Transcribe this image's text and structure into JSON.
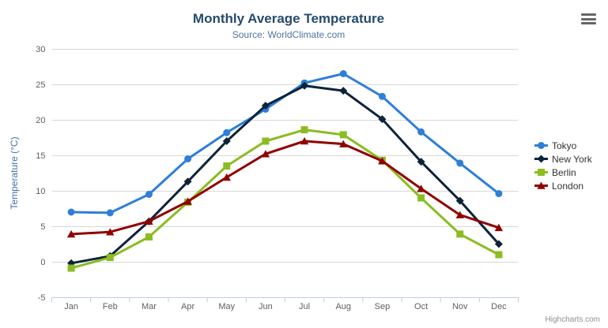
{
  "header": {
    "title": "Monthly Average Temperature",
    "subtitle": "Source: WorldClimate.com"
  },
  "credits_label": "Highcharts.com",
  "icons": {
    "context_menu": "hamburger-menu-icon"
  },
  "colors": {
    "title": "#274b6d",
    "subtitle": "#4d759e",
    "axis_label": "#606060",
    "axis_title": "#4572a7",
    "gridline": "#d8d8d8",
    "axis_line": "#c0d0e0",
    "legend_text": "#333333",
    "credits": "#909090"
  },
  "chart_data": {
    "type": "line",
    "title": "Monthly Average Temperature",
    "subtitle": "Source: WorldClimate.com",
    "categories": [
      "Jan",
      "Feb",
      "Mar",
      "Apr",
      "May",
      "Jun",
      "Jul",
      "Aug",
      "Sep",
      "Oct",
      "Nov",
      "Dec"
    ],
    "series": [
      {
        "name": "Tokyo",
        "color": "#2f7ed8",
        "marker": "circle",
        "values": [
          7.0,
          6.9,
          9.5,
          14.5,
          18.2,
          21.5,
          25.2,
          26.5,
          23.3,
          18.3,
          13.9,
          9.6
        ]
      },
      {
        "name": "New York",
        "color": "#0d233a",
        "marker": "diamond",
        "values": [
          -0.2,
          0.8,
          5.7,
          11.3,
          17.0,
          22.0,
          24.8,
          24.1,
          20.1,
          14.1,
          8.6,
          2.5
        ]
      },
      {
        "name": "Berlin",
        "color": "#8bbc21",
        "marker": "square",
        "values": [
          -0.9,
          0.6,
          3.5,
          8.4,
          13.5,
          17.0,
          18.6,
          17.9,
          14.3,
          9.0,
          3.9,
          1.0
        ]
      },
      {
        "name": "London",
        "color": "#910000",
        "marker": "triangle",
        "values": [
          3.9,
          4.2,
          5.7,
          8.5,
          11.9,
          15.2,
          17.0,
          16.6,
          14.2,
          10.3,
          6.6,
          4.8
        ]
      }
    ],
    "xlabel": "",
    "ylabel": "Temperature (°C)",
    "ylim": [
      -5,
      30
    ],
    "ytick_step": 5,
    "grid": true,
    "legend_position": "right"
  }
}
